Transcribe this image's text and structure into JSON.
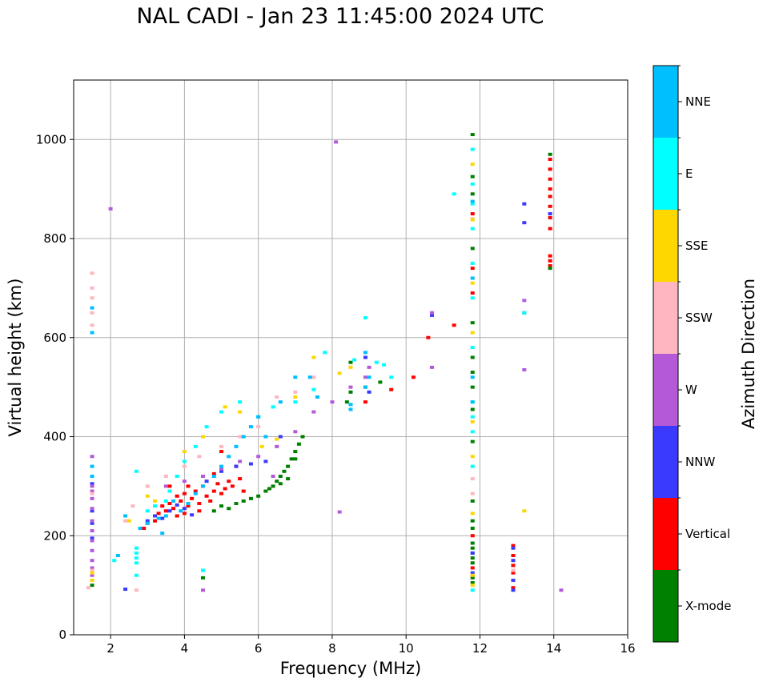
{
  "chart_data": {
    "type": "scatter",
    "title": "NAL CADI - Jan 23 11:45:00 2024 UTC",
    "xlabel": "Frequency (MHz)",
    "ylabel": "Virtual height (km)",
    "xlim": [
      1,
      16
    ],
    "ylim": [
      0,
      1120
    ],
    "xticks": [
      2,
      4,
      6,
      8,
      10,
      12,
      14,
      16
    ],
    "yticks": [
      0,
      200,
      400,
      600,
      800,
      1000
    ],
    "grid": true,
    "colorbar": {
      "label": "Azimuth Direction",
      "categories": [
        {
          "name": "X-mode",
          "color": "#008000"
        },
        {
          "name": "Vertical",
          "color": "#ff0000"
        },
        {
          "name": "NNW",
          "color": "#3a3aff"
        },
        {
          "name": "W",
          "color": "#b45ad8"
        },
        {
          "name": "SSW",
          "color": "#ffb6c1"
        },
        {
          "name": "SSE",
          "color": "#ffd700"
        },
        {
          "name": "E",
          "color": "#00ffff"
        },
        {
          "name": "NNE",
          "color": "#00bfff"
        }
      ]
    },
    "echo_groups": [
      {
        "direction": "Vertical",
        "points": [
          [
            2.9,
            215
          ],
          [
            3.0,
            225
          ],
          [
            3.2,
            230
          ],
          [
            3.3,
            245
          ],
          [
            3.4,
            260
          ],
          [
            3.5,
            250
          ],
          [
            3.6,
            265
          ],
          [
            3.7,
            255
          ],
          [
            3.8,
            280
          ],
          [
            3.9,
            270
          ],
          [
            4.0,
            285
          ],
          [
            4.0,
            245
          ],
          [
            4.1,
            260
          ],
          [
            4.2,
            275
          ],
          [
            4.3,
            290
          ],
          [
            4.4,
            265
          ],
          [
            4.5,
            300
          ],
          [
            4.6,
            280
          ],
          [
            4.7,
            270
          ],
          [
            4.8,
            290
          ],
          [
            4.9,
            305
          ],
          [
            5.0,
            285
          ],
          [
            5.1,
            295
          ],
          [
            5.2,
            310
          ],
          [
            5.3,
            300
          ],
          [
            5.5,
            315
          ],
          [
            5.6,
            290
          ],
          [
            3.6,
            300
          ],
          [
            3.8,
            240
          ],
          [
            4.1,
            300
          ],
          [
            4.4,
            250
          ],
          [
            4.8,
            325
          ],
          [
            5.0,
            370
          ],
          [
            5.4,
            340
          ],
          [
            13.9,
            960
          ],
          [
            13.9,
            940
          ],
          [
            13.9,
            920
          ],
          [
            13.9,
            900
          ],
          [
            13.9,
            885
          ],
          [
            13.9,
            865
          ],
          [
            13.9,
            842
          ],
          [
            13.9,
            820
          ],
          [
            13.9,
            765
          ],
          [
            13.9,
            755
          ],
          [
            13.9,
            745
          ],
          [
            12.9,
            180
          ],
          [
            12.9,
            160
          ],
          [
            12.9,
            140
          ],
          [
            12.9,
            125
          ],
          [
            12.9,
            95
          ],
          [
            11.8,
            135
          ],
          [
            11.8,
            118
          ],
          [
            11.8,
            200
          ],
          [
            11.8,
            850
          ],
          [
            11.8,
            740
          ],
          [
            11.8,
            690
          ],
          [
            10.6,
            600
          ],
          [
            11.3,
            625
          ],
          [
            8.9,
            470
          ],
          [
            9.6,
            495
          ],
          [
            10.2,
            520
          ]
        ]
      },
      {
        "direction": "X-mode",
        "points": [
          [
            5.2,
            255
          ],
          [
            5.4,
            265
          ],
          [
            5.6,
            270
          ],
          [
            5.8,
            275
          ],
          [
            6.0,
            280
          ],
          [
            6.2,
            290
          ],
          [
            6.4,
            300
          ],
          [
            6.5,
            310
          ],
          [
            6.6,
            320
          ],
          [
            6.7,
            330
          ],
          [
            6.8,
            340
          ],
          [
            6.9,
            355
          ],
          [
            7.0,
            370
          ],
          [
            7.1,
            385
          ],
          [
            7.2,
            400
          ],
          [
            4.8,
            250
          ],
          [
            5.0,
            260
          ],
          [
            6.3,
            295
          ],
          [
            6.6,
            305
          ],
          [
            6.8,
            315
          ],
          [
            7.0,
            355
          ],
          [
            8.5,
            490
          ],
          [
            8.9,
            500
          ],
          [
            9.3,
            510
          ],
          [
            8.5,
            550
          ],
          [
            8.4,
            470
          ],
          [
            11.8,
            1010
          ],
          [
            11.8,
            925
          ],
          [
            11.8,
            890
          ],
          [
            11.8,
            780
          ],
          [
            11.8,
            630
          ],
          [
            11.8,
            560
          ],
          [
            11.8,
            530
          ],
          [
            11.8,
            500
          ],
          [
            11.8,
            455
          ],
          [
            11.8,
            390
          ],
          [
            11.8,
            270
          ],
          [
            11.8,
            230
          ],
          [
            11.8,
            215
          ],
          [
            11.8,
            185
          ],
          [
            11.8,
            175
          ],
          [
            11.8,
            165
          ],
          [
            11.8,
            155
          ],
          [
            11.8,
            145
          ],
          [
            11.8,
            115
          ],
          [
            11.8,
            105
          ],
          [
            13.9,
            970
          ],
          [
            13.9,
            740
          ],
          [
            1.5,
            100
          ],
          [
            4.5,
            115
          ]
        ]
      },
      {
        "direction": "NNW",
        "points": [
          [
            3.0,
            230
          ],
          [
            3.2,
            240
          ],
          [
            3.4,
            235
          ],
          [
            3.6,
            250
          ],
          [
            3.8,
            262
          ],
          [
            4.0,
            255
          ],
          [
            4.2,
            242
          ],
          [
            4.6,
            310
          ],
          [
            5.0,
            330
          ],
          [
            5.4,
            340
          ],
          [
            5.8,
            345
          ],
          [
            6.2,
            350
          ],
          [
            6.6,
            400
          ],
          [
            8.9,
            560
          ],
          [
            9.0,
            490
          ],
          [
            11.8,
            165
          ],
          [
            11.8,
            125
          ],
          [
            12.9,
            175
          ],
          [
            12.9,
            150
          ],
          [
            12.9,
            110
          ],
          [
            12.9,
            90
          ],
          [
            13.2,
            870
          ],
          [
            13.2,
            832
          ],
          [
            13.2,
            650
          ],
          [
            13.9,
            850
          ],
          [
            10.7,
            645
          ],
          [
            1.5,
            195
          ],
          [
            1.5,
            225
          ],
          [
            1.5,
            250
          ],
          [
            1.5,
            305
          ],
          [
            2.4,
            92
          ]
        ]
      },
      {
        "direction": "W",
        "points": [
          [
            1.5,
            120
          ],
          [
            1.5,
            135
          ],
          [
            1.5,
            150
          ],
          [
            1.5,
            170
          ],
          [
            1.5,
            190
          ],
          [
            1.5,
            210
          ],
          [
            1.5,
            230
          ],
          [
            1.5,
            255
          ],
          [
            1.5,
            275
          ],
          [
            1.5,
            290
          ],
          [
            1.5,
            300
          ],
          [
            1.5,
            360
          ],
          [
            3.5,
            300
          ],
          [
            4.0,
            310
          ],
          [
            4.5,
            320
          ],
          [
            5.0,
            335
          ],
          [
            5.5,
            350
          ],
          [
            6.0,
            360
          ],
          [
            6.5,
            380
          ],
          [
            7.0,
            410
          ],
          [
            7.5,
            450
          ],
          [
            8.0,
            470
          ],
          [
            8.5,
            500
          ],
          [
            8.9,
            520
          ],
          [
            9.0,
            540
          ],
          [
            8.1,
            995
          ],
          [
            8.2,
            248
          ],
          [
            10.7,
            650
          ],
          [
            10.7,
            540
          ],
          [
            13.2,
            675
          ],
          [
            13.2,
            535
          ],
          [
            14.2,
            90
          ],
          [
            4.5,
            90
          ],
          [
            2.0,
            860
          ],
          [
            6.4,
            320
          ]
        ]
      },
      {
        "direction": "SSW",
        "points": [
          [
            1.5,
            730
          ],
          [
            1.5,
            700
          ],
          [
            1.5,
            680
          ],
          [
            1.5,
            650
          ],
          [
            1.5,
            625
          ],
          [
            1.5,
            285
          ],
          [
            1.5,
            130
          ],
          [
            2.4,
            230
          ],
          [
            2.6,
            260
          ],
          [
            3.0,
            300
          ],
          [
            3.5,
            320
          ],
          [
            4.0,
            340
          ],
          [
            4.4,
            360
          ],
          [
            5.0,
            380
          ],
          [
            5.5,
            400
          ],
          [
            6.0,
            420
          ],
          [
            6.5,
            480
          ],
          [
            7.0,
            490
          ],
          [
            11.8,
            285
          ],
          [
            11.8,
            315
          ],
          [
            11.8,
            840
          ],
          [
            12.9,
            130
          ],
          [
            2.7,
            90
          ],
          [
            1.4,
            95
          ],
          [
            7.5,
            520
          ]
        ]
      },
      {
        "direction": "SSE",
        "points": [
          [
            1.5,
            125
          ],
          [
            1.5,
            110
          ],
          [
            2.5,
            230
          ],
          [
            3.0,
            280
          ],
          [
            4.0,
            370
          ],
          [
            4.5,
            400
          ],
          [
            5.1,
            460
          ],
          [
            5.5,
            450
          ],
          [
            6.1,
            380
          ],
          [
            6.5,
            395
          ],
          [
            7.0,
            480
          ],
          [
            7.5,
            560
          ],
          [
            8.2,
            528
          ],
          [
            8.5,
            540
          ],
          [
            11.8,
            950
          ],
          [
            11.8,
            838
          ],
          [
            11.8,
            710
          ],
          [
            11.8,
            610
          ],
          [
            11.8,
            430
          ],
          [
            11.8,
            360
          ],
          [
            11.8,
            245
          ],
          [
            11.8,
            120
          ],
          [
            11.8,
            100
          ],
          [
            13.2,
            250
          ],
          [
            3.2,
            270
          ]
        ]
      },
      {
        "direction": "E",
        "points": [
          [
            2.7,
            330
          ],
          [
            2.7,
            175
          ],
          [
            2.7,
            165
          ],
          [
            2.7,
            155
          ],
          [
            2.7,
            145
          ],
          [
            2.7,
            120
          ],
          [
            3.0,
            250
          ],
          [
            3.2,
            260
          ],
          [
            3.5,
            270
          ],
          [
            3.6,
            290
          ],
          [
            3.8,
            320
          ],
          [
            4.0,
            350
          ],
          [
            4.3,
            380
          ],
          [
            4.6,
            420
          ],
          [
            5.0,
            450
          ],
          [
            5.5,
            470
          ],
          [
            6.0,
            440
          ],
          [
            6.4,
            460
          ],
          [
            7.0,
            470
          ],
          [
            7.5,
            495
          ],
          [
            7.8,
            570
          ],
          [
            8.6,
            555
          ],
          [
            9.2,
            550
          ],
          [
            9.4,
            545
          ],
          [
            9.6,
            520
          ],
          [
            8.9,
            640
          ],
          [
            11.3,
            890
          ],
          [
            11.8,
            980
          ],
          [
            11.8,
            910
          ],
          [
            11.8,
            870
          ],
          [
            11.8,
            820
          ],
          [
            11.8,
            750
          ],
          [
            11.8,
            680
          ],
          [
            11.8,
            580
          ],
          [
            11.8,
            470
          ],
          [
            11.8,
            440
          ],
          [
            11.8,
            410
          ],
          [
            11.8,
            340
          ],
          [
            11.8,
            90
          ],
          [
            13.2,
            650
          ],
          [
            2.1,
            150
          ],
          [
            4.5,
            130
          ]
        ]
      },
      {
        "direction": "NNE",
        "points": [
          [
            2.4,
            240
          ],
          [
            2.8,
            215
          ],
          [
            3.0,
            225
          ],
          [
            3.3,
            235
          ],
          [
            3.5,
            240
          ],
          [
            3.7,
            270
          ],
          [
            3.9,
            250
          ],
          [
            4.1,
            265
          ],
          [
            4.3,
            285
          ],
          [
            4.5,
            300
          ],
          [
            4.8,
            320
          ],
          [
            5.0,
            340
          ],
          [
            5.2,
            360
          ],
          [
            5.4,
            380
          ],
          [
            5.6,
            400
          ],
          [
            5.8,
            420
          ],
          [
            6.0,
            440
          ],
          [
            6.2,
            400
          ],
          [
            6.6,
            470
          ],
          [
            7.0,
            520
          ],
          [
            7.4,
            520
          ],
          [
            7.6,
            480
          ],
          [
            8.5,
            455
          ],
          [
            8.5,
            465
          ],
          [
            8.9,
            570
          ],
          [
            8.9,
            500
          ],
          [
            9.0,
            520
          ],
          [
            11.8,
            875
          ],
          [
            11.8,
            720
          ],
          [
            11.8,
            520
          ],
          [
            11.8,
            470
          ],
          [
            1.5,
            610
          ],
          [
            1.5,
            660
          ],
          [
            1.5,
            340
          ],
          [
            1.5,
            320
          ],
          [
            3.4,
            205
          ],
          [
            2.2,
            160
          ]
        ]
      }
    ]
  }
}
